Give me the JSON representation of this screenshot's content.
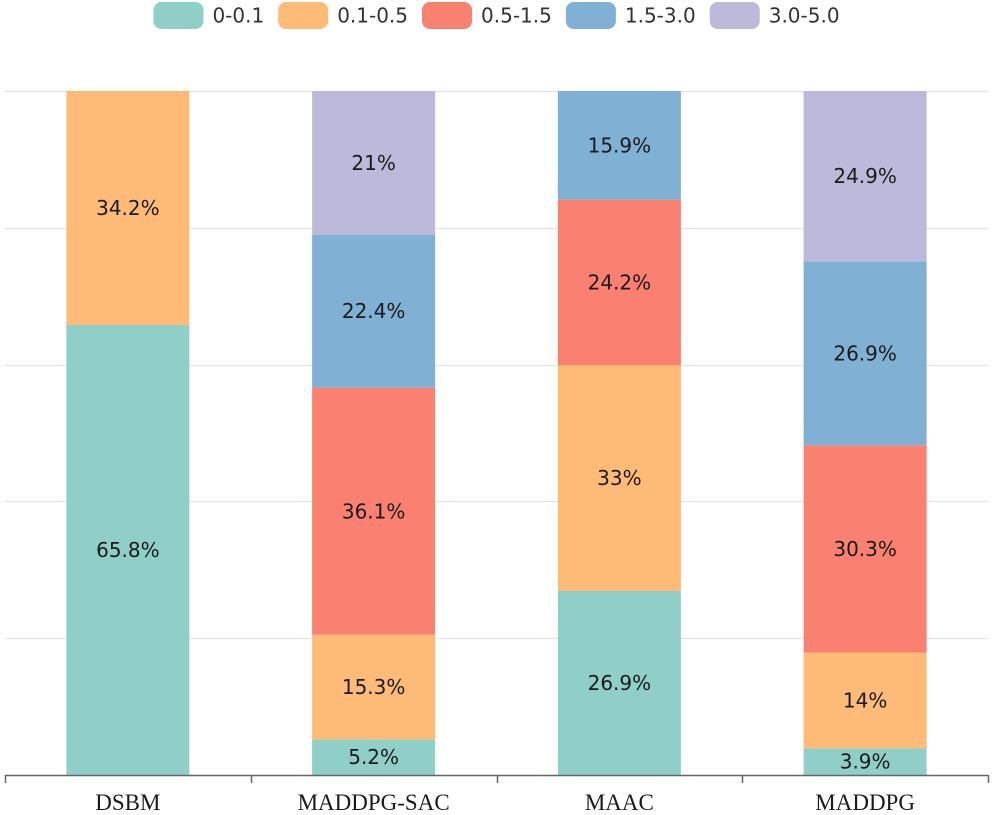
{
  "chart_data": {
    "type": "bar",
    "stacked": true,
    "categories": [
      "DSBM",
      "MADDPG-SAC",
      "MAAC",
      "MADDPG"
    ],
    "series": [
      {
        "name": "0-0.1",
        "color": "#8fcfc8",
        "values": [
          65.8,
          5.2,
          26.9,
          3.9
        ],
        "labels": [
          "65.8%",
          "5.2%",
          "26.9%",
          "3.9%"
        ]
      },
      {
        "name": "0.1-0.5",
        "color": "#fdbb77",
        "values": [
          34.2,
          15.3,
          33,
          14
        ],
        "labels": [
          "34.2%",
          "15.3%",
          "33%",
          "14%"
        ]
      },
      {
        "name": "0.5-1.5",
        "color": "#fa8071",
        "values": [
          0,
          36.1,
          24.2,
          30.3
        ],
        "labels": [
          "",
          "36.1%",
          "24.2%",
          "30.3%"
        ]
      },
      {
        "name": "1.5-3.0",
        "color": "#80b0d3",
        "values": [
          0,
          22.4,
          15.9,
          26.9
        ],
        "labels": [
          "",
          "22.4%",
          "15.9%",
          "26.9%"
        ]
      },
      {
        "name": "3.0-5.0",
        "color": "#bdb9db",
        "values": [
          0,
          21,
          0,
          24.9
        ],
        "labels": [
          "",
          "21%",
          "",
          "24.9%"
        ]
      }
    ],
    "ylim": [
      0,
      100
    ],
    "grid": true,
    "legend": "top-center",
    "title": "",
    "xlabel": "",
    "ylabel": ""
  }
}
